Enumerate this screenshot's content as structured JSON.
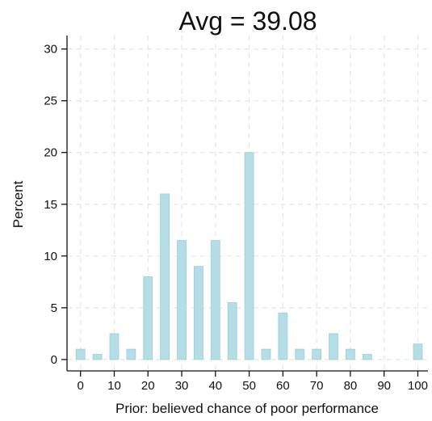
{
  "chart_data": {
    "type": "bar",
    "title": "Avg = 39.08",
    "xlabel": "Prior: believed chance of poor performance",
    "ylabel": "Percent",
    "x": [
      0,
      5,
      10,
      15,
      20,
      25,
      30,
      35,
      40,
      45,
      50,
      55,
      60,
      65,
      70,
      75,
      80,
      85,
      90,
      95,
      100
    ],
    "values": [
      1.0,
      0.5,
      2.5,
      1.0,
      8.0,
      16.0,
      11.5,
      9.0,
      11.5,
      5.5,
      20.0,
      1.0,
      4.5,
      1.0,
      1.0,
      2.5,
      1.0,
      0.5,
      0,
      0,
      1.5
    ],
    "xlim": [
      -4,
      103
    ],
    "ylim": [
      -1.1,
      31.3
    ],
    "xticks": [
      0,
      10,
      20,
      30,
      40,
      50,
      60,
      70,
      80,
      90,
      100
    ],
    "yticks": [
      0,
      5,
      10,
      15,
      20,
      25,
      30
    ],
    "grid": true,
    "bar_color": "#b4dde6",
    "bar_edge_color": "#9ccfdb",
    "grid_color": "#e6e6e6",
    "axis_color": "#111111"
  }
}
